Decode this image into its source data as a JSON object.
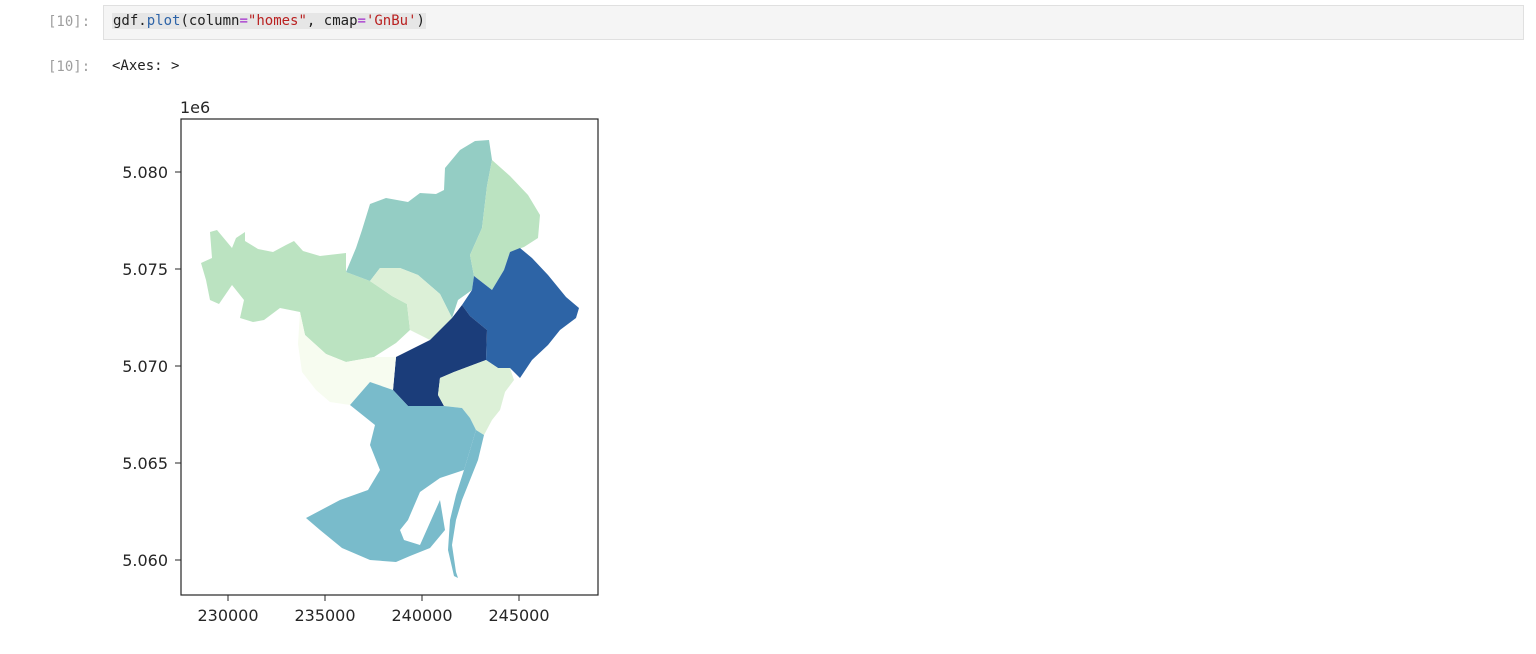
{
  "input_cell": {
    "prompt": "[10]:",
    "code_tokens": [
      {
        "text": "gdf",
        "cls": "tok-var"
      },
      {
        "text": ".",
        "cls": "tok-p"
      },
      {
        "text": "plot",
        "cls": "tok-attr"
      },
      {
        "text": "(column",
        "cls": "tok-p"
      },
      {
        "text": "=",
        "cls": "tok-op"
      },
      {
        "text": "\"homes\"",
        "cls": "tok-str"
      },
      {
        "text": ", cmap",
        "cls": "tok-p"
      },
      {
        "text": "=",
        "cls": "tok-op"
      },
      {
        "text": "'GnBu'",
        "cls": "tok-str"
      },
      {
        "text": ")",
        "cls": "tok-p"
      }
    ]
  },
  "output_cell": {
    "prompt": "[10]:",
    "text": "<Axes: >"
  },
  "plot": {
    "offset_label": "1e6",
    "x_ticks": [
      "230000",
      "235000",
      "240000",
      "245000"
    ],
    "y_ticks": [
      "5.080",
      "5.075",
      "5.070",
      "5.065",
      "5.060"
    ],
    "colors": {
      "frame": "#262626",
      "lightest": "#f7fcf0",
      "light": "#dcf0d7",
      "light_green": "#bbe3c1",
      "teal_light": "#94cdc4",
      "teal": "#79bbcb",
      "blue": "#2d64a6",
      "dark_blue": "#1b3d7a"
    }
  }
}
